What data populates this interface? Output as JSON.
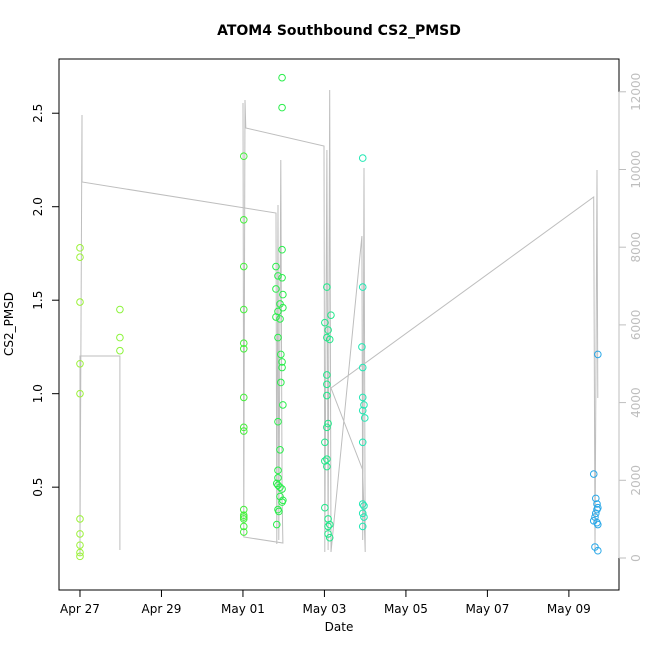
{
  "chart_data": {
    "type": "scatter",
    "title": "ATOM4 Southbound CS2_PMSD",
    "xlabel": "Date",
    "ylabel": "CS2_PMSD",
    "xlim": [
      -0.515,
      13.23
    ],
    "xticks": [
      {
        "value": 0,
        "label": "Apr 27"
      },
      {
        "value": 2,
        "label": "Apr 29"
      },
      {
        "value": 4,
        "label": "May 01"
      },
      {
        "value": 6,
        "label": "May 03"
      },
      {
        "value": 8,
        "label": "May 05"
      },
      {
        "value": 10,
        "label": "May 07"
      },
      {
        "value": 12,
        "label": "May 09"
      }
    ],
    "ylim": [
      -0.05,
      2.79
    ],
    "yticks": [
      0.5,
      {
        "value": 1,
        "label": "1.0"
      },
      1.5,
      {
        "value": 2,
        "label": "2.0"
      },
      2.5
    ],
    "y2lim": [
      -824,
      12844
    ],
    "y2ticks": [
      0,
      2000,
      4000,
      6000,
      8000,
      10000,
      12000
    ],
    "y2_color": "#bebebe",
    "point_groups": [
      {
        "color": "#9cf23a",
        "x": [
          0,
          0,
          0,
          0,
          0,
          0,
          0,
          0,
          0,
          0
        ],
        "values": [
          1.78,
          1.73,
          1.49,
          1.16,
          1.0,
          0.33,
          0.25,
          0.19,
          0.15,
          0.13
        ]
      },
      {
        "color": "#8cf43c",
        "x": [
          0.98,
          0.98,
          0.98
        ],
        "values": [
          1.45,
          1.3,
          1.23
        ]
      },
      {
        "color": "#46f03c",
        "x": [
          4.02,
          4.02,
          4.02,
          4.02,
          4.02,
          4.02,
          4.02,
          4.02,
          4.02,
          4.02,
          4.02,
          4.02,
          4.02,
          4.02,
          4.02
        ],
        "values": [
          2.27,
          1.93,
          1.68,
          1.45,
          1.27,
          1.24,
          0.98,
          0.82,
          0.8,
          0.38,
          0.35,
          0.34,
          0.33,
          0.29,
          0.26
        ]
      },
      {
        "color": "#2aee4c",
        "x": [
          4.96,
          4.96,
          4.96,
          4.81,
          4.86,
          4.96,
          4.81,
          4.98,
          4.91,
          4.98,
          4.86,
          4.81,
          4.91,
          4.86,
          4.93,
          4.96,
          4.96,
          4.93,
          4.98,
          4.86,
          4.91,
          4.86,
          4.86,
          4.83,
          4.86,
          4.91,
          4.96,
          4.91,
          4.98,
          4.96,
          4.86,
          4.88,
          4.83
        ],
        "values": [
          2.69,
          2.53,
          1.77,
          1.68,
          1.63,
          1.62,
          1.56,
          1.53,
          1.48,
          1.46,
          1.44,
          1.41,
          1.4,
          1.3,
          1.21,
          1.17,
          1.14,
          1.06,
          0.94,
          0.85,
          0.7,
          0.59,
          0.55,
          0.52,
          0.51,
          0.5,
          0.49,
          0.45,
          0.43,
          0.42,
          0.38,
          0.37,
          0.3
        ]
      },
      {
        "color": "#22e88a",
        "x": [
          6.06,
          6.16,
          6.01,
          6.09,
          6.06,
          6.13,
          6.06,
          6.06,
          6.06,
          6.09,
          6.06,
          6.01,
          6.06,
          6.01,
          6.06,
          6.01,
          6.09,
          6.13,
          6.09,
          6.09,
          6.13
        ],
        "values": [
          1.57,
          1.42,
          1.38,
          1.34,
          1.3,
          1.29,
          1.1,
          1.05,
          0.99,
          0.84,
          0.82,
          0.74,
          0.65,
          0.64,
          0.61,
          0.39,
          0.33,
          0.3,
          0.29,
          0.25,
          0.23
        ]
      },
      {
        "color": "#22e8b4",
        "x": [
          6.94,
          6.94,
          6.92,
          6.94,
          6.94,
          6.97,
          6.94,
          6.99,
          6.94,
          6.94,
          6.97,
          6.94,
          6.97,
          6.94
        ],
        "values": [
          2.26,
          1.57,
          1.25,
          1.14,
          0.98,
          0.94,
          0.91,
          0.87,
          0.74,
          0.41,
          0.4,
          0.36,
          0.34,
          0.29
        ]
      },
      {
        "color": "#2aa8e8",
        "x": [
          12.61,
          12.66,
          12.69,
          12.71,
          12.69,
          12.66,
          12.64,
          12.61,
          12.69,
          12.71,
          12.64,
          12.71,
          12.71
        ],
        "values": [
          0.57,
          0.44,
          0.41,
          0.39,
          0.38,
          0.36,
          0.34,
          0.32,
          0.31,
          0.3,
          0.18,
          0.16,
          1.21
        ]
      }
    ],
    "line": {
      "color": "#bebebe",
      "axis": "y2",
      "x": [
        0,
        0,
        0.98,
        0.98,
        null,
        0,
        0.05,
        0.05,
        4.81,
        4.83,
        4.86,
        4.88,
        4.93,
        4.96,
        4.98,
        4.02,
        4.0,
        4.02,
        4.05,
        4.07,
        5.99,
        6.01,
        6.06,
        6.09,
        6.13,
        6.16,
        6.92,
        6.94,
        6.97,
        7.0,
        6.94,
        6.16,
        12.61,
        12.64,
        12.69,
        12.71
      ],
      "values": [
        51,
        5200,
        5200,
        206,
        null,
        463,
        11403,
        9678,
        8880,
        360,
        9086,
        463,
        10245,
        1493,
        386,
        541,
        11712,
        978,
        11789,
        11068,
        10605,
        154,
        10502,
        206,
        12046,
        154,
        8288,
        463,
        10039,
        154,
        2265,
        4376,
        9292,
        154,
        9987,
        4118
      ]
    }
  }
}
